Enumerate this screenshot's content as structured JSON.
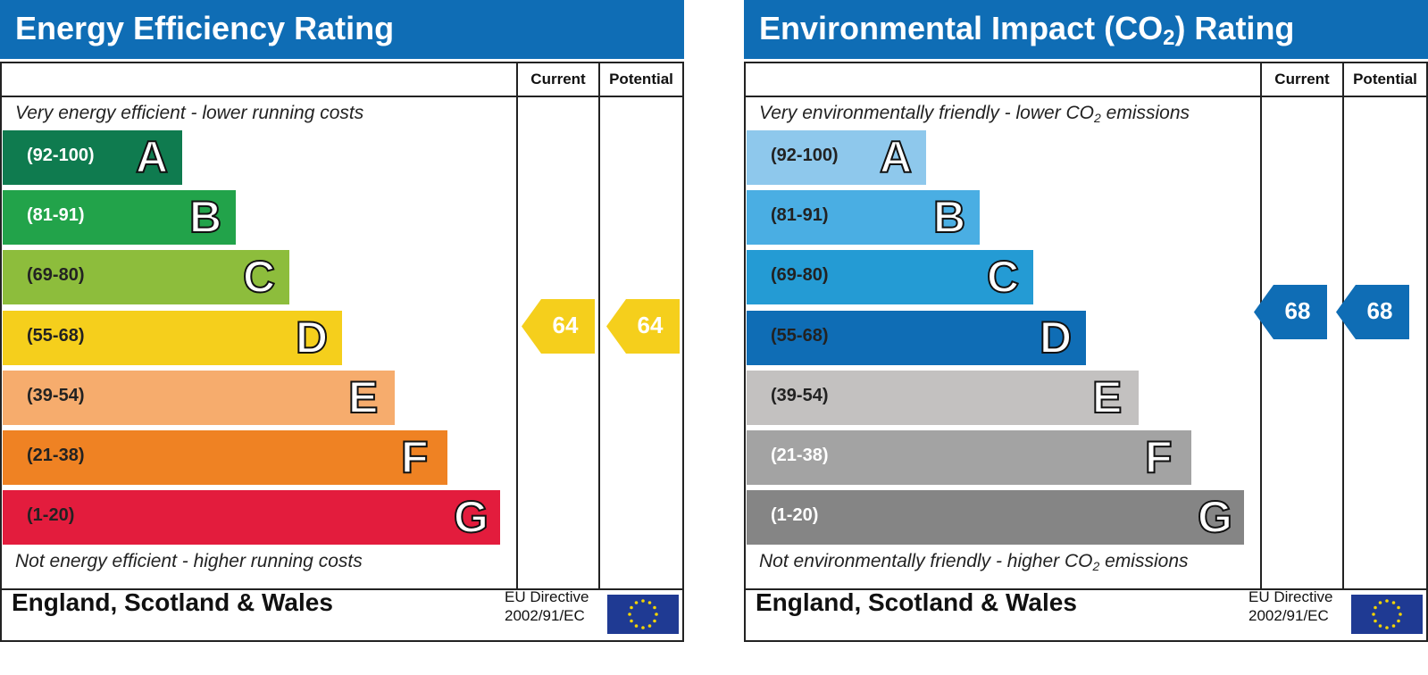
{
  "chart_data": [
    {
      "type": "bar",
      "title": "Energy Efficiency Rating",
      "columns": [
        "Current",
        "Potential"
      ],
      "top_note": "Very energy efficient - lower running costs",
      "bottom_note": "Not energy efficient - higher running costs",
      "bands": [
        {
          "range": "(92-100)",
          "letter": "A",
          "color": "#0f7b4f",
          "text_color": "#ffffff"
        },
        {
          "range": "(81-91)",
          "letter": "B",
          "color": "#22a34a",
          "text_color": "#ffffff"
        },
        {
          "range": "(69-80)",
          "letter": "C",
          "color": "#8dbd3c",
          "text_color": "#222222"
        },
        {
          "range": "(55-68)",
          "letter": "D",
          "color": "#f5cf1c",
          "text_color": "#222222"
        },
        {
          "range": "(39-54)",
          "letter": "E",
          "color": "#f6ac6d",
          "text_color": "#222222"
        },
        {
          "range": "(21-38)",
          "letter": "F",
          "color": "#ef8223",
          "text_color": "#222222"
        },
        {
          "range": "(1-20)",
          "letter": "G",
          "color": "#e31c3d",
          "text_color": "#222222"
        }
      ],
      "current": {
        "value": 64,
        "band": "D",
        "color": "#f5cf1c"
      },
      "potential": {
        "value": 64,
        "band": "D",
        "color": "#f5cf1c"
      },
      "footer": {
        "region": "England, Scotland & Wales",
        "directive_line1": "EU Directive",
        "directive_line2": "2002/91/EC"
      }
    },
    {
      "type": "bar",
      "title_main": "Environmental Impact (CO",
      "title_sub": "2",
      "title_end": ") Rating",
      "columns": [
        "Current",
        "Potential"
      ],
      "top_note_main": "Very environmentally friendly - lower CO",
      "top_note_sub": "2",
      "top_note_end": " emissions",
      "bottom_note_main": "Not environmentally friendly - higher CO",
      "bottom_note_sub": "2",
      "bottom_note_end": " emissions",
      "bands": [
        {
          "range": "(92-100)",
          "letter": "A",
          "color": "#8ec8ec",
          "text_color": "#222222"
        },
        {
          "range": "(81-91)",
          "letter": "B",
          "color": "#4aaee3",
          "text_color": "#222222"
        },
        {
          "range": "(69-80)",
          "letter": "C",
          "color": "#249bd4",
          "text_color": "#222222"
        },
        {
          "range": "(55-68)",
          "letter": "D",
          "color": "#0f6db5",
          "text_color": "#222222"
        },
        {
          "range": "(39-54)",
          "letter": "E",
          "color": "#c3c1c0",
          "text_color": "#222222"
        },
        {
          "range": "(21-38)",
          "letter": "F",
          "color": "#a3a3a3",
          "text_color": "#ffffff"
        },
        {
          "range": "(1-20)",
          "letter": "G",
          "color": "#858585",
          "text_color": "#ffffff"
        }
      ],
      "current": {
        "value": 68,
        "band": "D",
        "color": "#0f6db5"
      },
      "potential": {
        "value": 68,
        "band": "D",
        "color": "#0f6db5"
      },
      "footer": {
        "region": "England, Scotland & Wales",
        "directive_line1": "EU Directive",
        "directive_line2": "2002/91/EC"
      }
    }
  ]
}
